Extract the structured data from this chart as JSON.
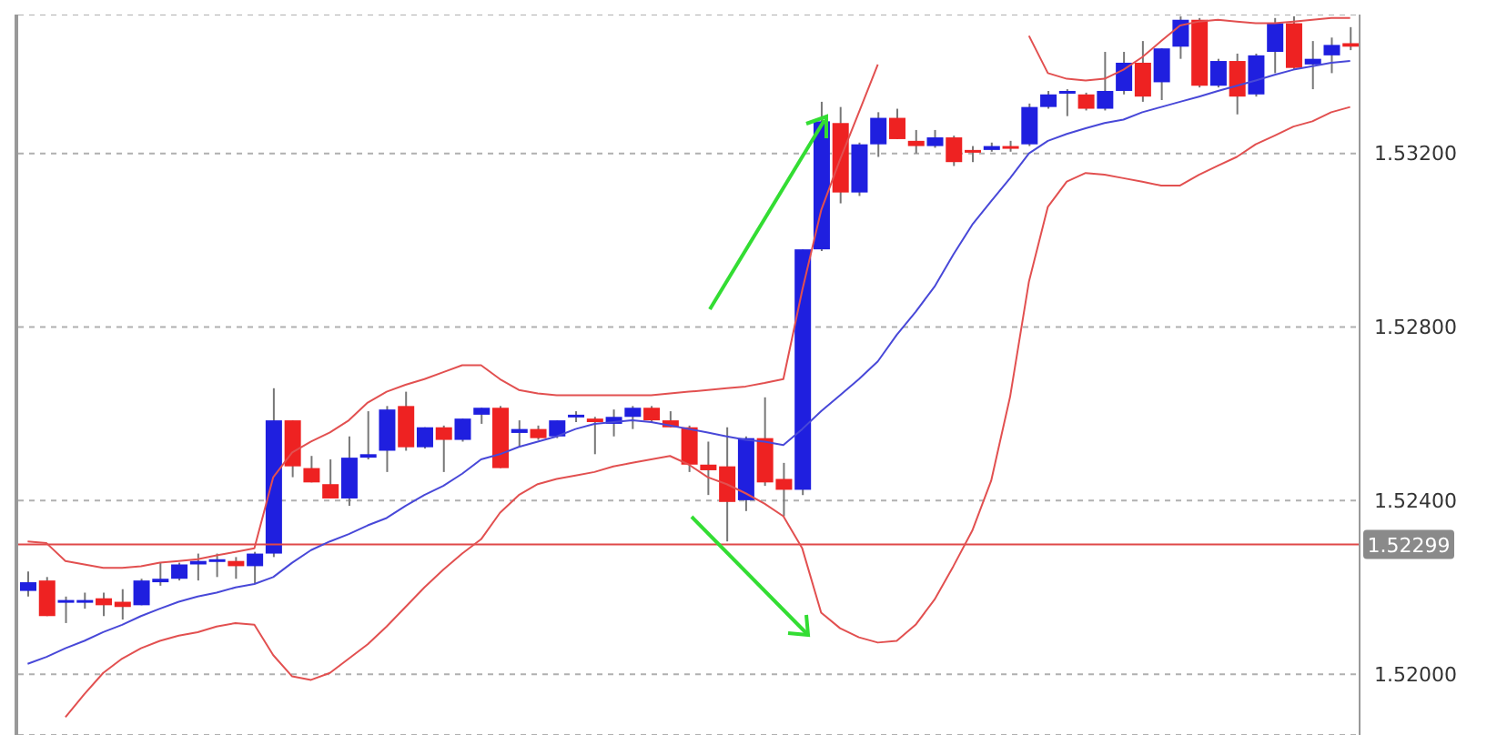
{
  "chart_data": {
    "type": "candlestick",
    "categories": [
      null,
      null,
      null,
      null,
      null,
      null,
      null,
      null,
      null,
      null,
      null,
      null,
      null,
      null,
      null,
      null,
      null,
      null,
      null,
      null,
      null,
      null,
      null,
      null,
      null,
      null,
      null,
      null,
      null,
      null,
      null,
      null,
      null,
      null,
      null,
      null,
      null,
      null,
      null,
      null,
      null,
      null,
      null,
      null,
      null,
      null,
      null,
      null,
      null,
      null,
      null,
      null,
      null,
      null,
      null,
      null,
      null,
      null,
      null,
      null,
      null,
      null,
      null,
      null,
      null,
      null,
      null,
      null,
      null,
      null,
      null
    ],
    "ohlc": [
      [
        1.52192,
        1.52237,
        1.52179,
        1.52212
      ],
      [
        1.52216,
        1.52224,
        1.52134,
        1.52134
      ],
      [
        1.52167,
        1.52179,
        1.52118,
        1.52171
      ],
      [
        1.52167,
        1.52188,
        1.52151,
        1.52171
      ],
      [
        1.52175,
        1.52188,
        1.52134,
        1.52159
      ],
      [
        1.52167,
        1.52196,
        1.52126,
        1.52155
      ],
      [
        1.52159,
        1.5222,
        1.52159,
        1.52216
      ],
      [
        1.52212,
        1.52257,
        1.52204,
        1.5222
      ],
      [
        1.5222,
        1.52257,
        1.52216,
        1.52253
      ],
      [
        1.52253,
        1.52278,
        1.52216,
        1.52261
      ],
      [
        1.52261,
        1.52278,
        1.52224,
        1.52265
      ],
      [
        1.52261,
        1.5227,
        1.5222,
        1.52249
      ],
      [
        1.52249,
        1.52282,
        1.52208,
        1.52278
      ],
      [
        1.52278,
        1.52659,
        1.5227,
        1.52585
      ],
      [
        1.52585,
        1.52585,
        1.52454,
        1.52479
      ],
      [
        1.52475,
        1.52503,
        1.52442,
        1.52442
      ],
      [
        1.52438,
        1.52495,
        1.52405,
        1.52405
      ],
      [
        1.52405,
        1.52548,
        1.52388,
        1.52499
      ],
      [
        1.52499,
        1.52606,
        1.52495,
        1.52507
      ],
      [
        1.52515,
        1.52618,
        1.52466,
        1.5261
      ],
      [
        1.52618,
        1.52651,
        1.52515,
        1.52523
      ],
      [
        1.52523,
        1.52569,
        1.5252,
        1.52569
      ],
      [
        1.52569,
        1.52573,
        1.52466,
        1.5254
      ],
      [
        1.5254,
        1.52589,
        1.52536,
        1.52589
      ],
      [
        1.52598,
        1.52614,
        1.52577,
        1.52614
      ],
      [
        1.52614,
        1.52618,
        1.52475,
        1.52475
      ],
      [
        1.52556,
        1.52585,
        1.52523,
        1.52565
      ],
      [
        1.52565,
        1.52573,
        1.5254,
        1.52544
      ],
      [
        1.52548,
        1.52585,
        1.52544,
        1.52585
      ],
      [
        1.52593,
        1.52606,
        1.52581,
        1.52598
      ],
      [
        1.52589,
        1.52593,
        1.52507,
        1.52581
      ],
      [
        1.52577,
        1.5261,
        1.52548,
        1.52593
      ],
      [
        1.52593,
        1.52618,
        1.52565,
        1.52614
      ],
      [
        1.52614,
        1.52618,
        1.52581,
        1.52585
      ],
      [
        1.52585,
        1.52606,
        1.52569,
        1.52569
      ],
      [
        1.52569,
        1.52573,
        1.52466,
        1.52483
      ],
      [
        1.52483,
        1.52536,
        1.52413,
        1.5247
      ],
      [
        1.52479,
        1.52569,
        1.52306,
        1.52397
      ],
      [
        1.52401,
        1.52548,
        1.52376,
        1.52544
      ],
      [
        1.52544,
        1.52638,
        1.52434,
        1.52442
      ],
      [
        1.5245,
        1.52487,
        1.52364,
        1.52425
      ],
      [
        1.52425,
        1.52979,
        1.52413,
        1.52979
      ],
      [
        1.52979,
        1.53319,
        1.52975,
        1.53274
      ],
      [
        1.5327,
        1.53307,
        1.53085,
        1.5311
      ],
      [
        1.5311,
        1.53225,
        1.53102,
        1.53221
      ],
      [
        1.53221,
        1.53295,
        1.53192,
        1.53282
      ],
      [
        1.53282,
        1.53303,
        1.53233,
        1.53233
      ],
      [
        1.53229,
        1.53254,
        1.532,
        1.53217
      ],
      [
        1.53217,
        1.53254,
        1.53213,
        1.53237
      ],
      [
        1.53237,
        1.53241,
        1.53171,
        1.5318
      ],
      [
        1.53208,
        1.53217,
        1.5318,
        1.53204
      ],
      [
        1.53208,
        1.53225,
        1.53204,
        1.53217
      ],
      [
        1.53217,
        1.53229,
        1.53204,
        1.53213
      ],
      [
        1.53221,
        1.53315,
        1.53217,
        1.53307
      ],
      [
        1.53307,
        1.53344,
        1.53303,
        1.53336
      ],
      [
        1.5334,
        1.53348,
        1.53286,
        1.53344
      ],
      [
        1.53336,
        1.5334,
        1.53299,
        1.53303
      ],
      [
        1.53303,
        1.53434,
        1.53299,
        1.53344
      ],
      [
        1.53344,
        1.53434,
        1.53336,
        1.53409
      ],
      [
        1.53409,
        1.53459,
        1.53319,
        1.53331
      ],
      [
        1.53364,
        1.53442,
        1.53323,
        1.53442
      ],
      [
        1.53446,
        1.53516,
        1.53418,
        1.53508
      ],
      [
        1.53508,
        1.53512,
        1.53352,
        1.53356
      ],
      [
        1.53356,
        1.53418,
        1.53352,
        1.53413
      ],
      [
        1.53413,
        1.5343,
        1.5329,
        1.53331
      ],
      [
        1.53336,
        1.5343,
        1.53331,
        1.53426
      ],
      [
        1.53434,
        1.53512,
        1.53385,
        1.535
      ],
      [
        1.535,
        1.53516,
        1.53393,
        1.53397
      ],
      [
        1.53405,
        1.53459,
        1.53348,
        1.53418
      ],
      [
        1.53426,
        1.53467,
        1.53385,
        1.5345
      ],
      [
        1.53454,
        1.53491,
        1.53438,
        1.53446
      ]
    ],
    "colors": [
      "#1f1fdf",
      "#ee2222",
      "#1f1fdf",
      "#1f1fdf",
      "#ee2222",
      "#ee2222",
      "#1f1fdf",
      "#1f1fdf",
      "#1f1fdf",
      "#1f1fdf",
      "#1f1fdf",
      "#ee2222",
      "#1f1fdf",
      "#1f1fdf",
      "#ee2222",
      "#ee2222",
      "#ee2222",
      "#1f1fdf",
      "#1f1fdf",
      "#1f1fdf",
      "#ee2222",
      "#1f1fdf",
      "#ee2222",
      "#1f1fdf",
      "#1f1fdf",
      "#ee2222",
      "#1f1fdf",
      "#ee2222",
      "#1f1fdf",
      "#1f1fdf",
      "#ee2222",
      "#1f1fdf",
      "#1f1fdf",
      "#ee2222",
      "#ee2222",
      "#ee2222",
      "#ee2222",
      "#ee2222",
      "#1f1fdf",
      "#ee2222",
      "#ee2222",
      "#1f1fdf",
      "#1f1fdf",
      "#ee2222",
      "#1f1fdf",
      "#1f1fdf",
      "#ee2222",
      "#ee2222",
      "#1f1fdf",
      "#ee2222",
      "#ee2222",
      "#1f1fdf",
      "#ee2222",
      "#1f1fdf",
      "#1f1fdf",
      "#1f1fdf",
      "#ee2222",
      "#1f1fdf",
      "#1f1fdf",
      "#ee2222",
      "#1f1fdf",
      "#1f1fdf",
      "#ee2222",
      "#1f1fdf",
      "#ee2222",
      "#1f1fdf",
      "#1f1fdf",
      "#ee2222",
      "#1f1fdf",
      "#1f1fdf",
      "#ee2222"
    ],
    "series": [
      {
        "type": "line",
        "color": "#4848d8",
        "values": [
          1.52024,
          1.5204,
          1.5206,
          1.52077,
          1.52097,
          1.52114,
          1.52134,
          1.52151,
          1.52167,
          1.52179,
          1.52188,
          1.522,
          1.52208,
          1.52224,
          1.52257,
          1.52286,
          1.52306,
          1.52323,
          1.52343,
          1.5236,
          1.52388,
          1.52413,
          1.52434,
          1.52462,
          1.52495,
          1.52507,
          1.52524,
          1.52536,
          1.52548,
          1.52565,
          1.52577,
          1.52581,
          1.52585,
          1.52581,
          1.52573,
          1.52565,
          1.52557,
          1.52548,
          1.5254,
          1.52536,
          1.52528,
          1.52565,
          1.52606,
          1.52643,
          1.5268,
          1.52721,
          1.52782,
          1.52835,
          1.52893,
          1.52967,
          1.53036,
          1.5309,
          1.53143,
          1.532,
          1.53229,
          1.53245,
          1.53258,
          1.5327,
          1.53278,
          1.53295,
          1.53307,
          1.53319,
          1.53331,
          1.53344,
          1.53356,
          1.53368,
          1.53381,
          1.53393,
          1.53401,
          1.53409,
          1.53413
        ]
      },
      {
        "type": "line",
        "color": "#e25050",
        "values": [
          1.52306,
          1.52302,
          1.52261,
          1.52253,
          1.52245,
          1.52245,
          1.52249,
          1.52257,
          1.52261,
          1.52265,
          1.52274,
          1.52282,
          1.5229,
          1.52454,
          1.52511,
          1.52536,
          1.52557,
          1.52585,
          1.52626,
          1.52651,
          1.52667,
          1.5268,
          1.52696,
          1.52712,
          1.52712,
          1.5268,
          1.52655,
          1.52647,
          1.52643,
          1.52643,
          1.52643,
          1.52643,
          1.52643,
          1.52643,
          1.52647,
          1.52651,
          1.52655,
          1.52659,
          1.52663,
          1.52671,
          1.5268,
          1.52885,
          1.53069,
          1.53186,
          1.53295,
          1.53405,
          null,
          null,
          null,
          null,
          null,
          null,
          null,
          1.53471,
          1.53385,
          1.53372,
          1.53368,
          1.53372,
          1.53393,
          1.53422,
          1.53459,
          1.53495,
          1.53504,
          1.53508,
          1.53504,
          1.535,
          1.535,
          1.53504,
          1.53508,
          1.53512,
          1.53512
        ]
      },
      {
        "type": "line",
        "color": "#e25050",
        "values": [
          null,
          null,
          1.51901,
          1.51954,
          1.52003,
          1.52036,
          1.5206,
          1.52077,
          1.52089,
          1.52097,
          1.5211,
          1.52118,
          1.52114,
          1.52044,
          1.51995,
          1.51987,
          1.52003,
          1.52036,
          1.52069,
          1.5211,
          1.52155,
          1.522,
          1.52241,
          1.52278,
          1.52311,
          1.52372,
          1.52413,
          1.52438,
          1.5245,
          1.52458,
          1.52466,
          1.52479,
          1.52487,
          1.52495,
          1.52503,
          1.52483,
          1.52454,
          1.52438,
          1.52417,
          1.52393,
          1.52364,
          1.5229,
          1.52142,
          1.52106,
          1.52085,
          1.52073,
          1.52077,
          1.52114,
          1.52172,
          1.52249,
          1.52331,
          1.52446,
          1.52639,
          1.52905,
          1.53077,
          1.53135,
          1.53155,
          1.53151,
          1.53143,
          1.53135,
          1.53126,
          1.53126,
          1.53151,
          1.53172,
          1.53192,
          1.53221,
          1.53241,
          1.53262,
          1.53274,
          1.53295,
          1.53307
        ]
      }
    ],
    "ylim": [
      1.5186,
      1.5352
    ],
    "yticks": [
      {
        "value": 1.52,
        "label": "1.52000"
      },
      {
        "value": 1.524,
        "label": "1.52400"
      },
      {
        "value": 1.528,
        "label": "1.52800"
      },
      {
        "value": 1.532,
        "label": "1.53200"
      }
    ],
    "ref_lines": [
      {
        "axis": "y",
        "value": 1.52299,
        "label": "1.52299",
        "color": "#e04848"
      }
    ],
    "grid": "y",
    "marker": "none",
    "tick_labels": "y"
  }
}
